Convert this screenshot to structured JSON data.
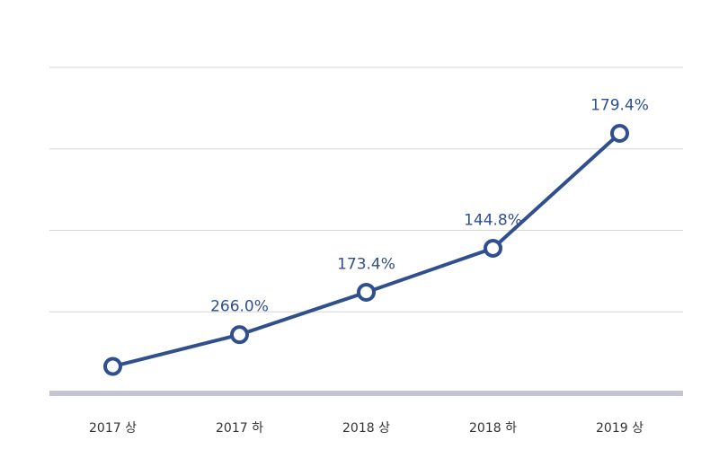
{
  "chart_data": {
    "type": "line",
    "categories": [
      "2017 상",
      "2017 하",
      "2018 상",
      "2018 하",
      "2019 상"
    ],
    "values": [
      33,
      72,
      124,
      178,
      319
    ],
    "data_labels": [
      "",
      "266.0%",
      "173.4%",
      "144.8%",
      "179.4%"
    ],
    "title": "",
    "xlabel": "",
    "ylabel": "",
    "ylim": [
      0,
      400
    ],
    "grid": true,
    "legend": "none",
    "colors": {
      "line": "#2f4f8f",
      "grid": "#d6d6d6",
      "baseline": "#c4c4d2"
    }
  }
}
